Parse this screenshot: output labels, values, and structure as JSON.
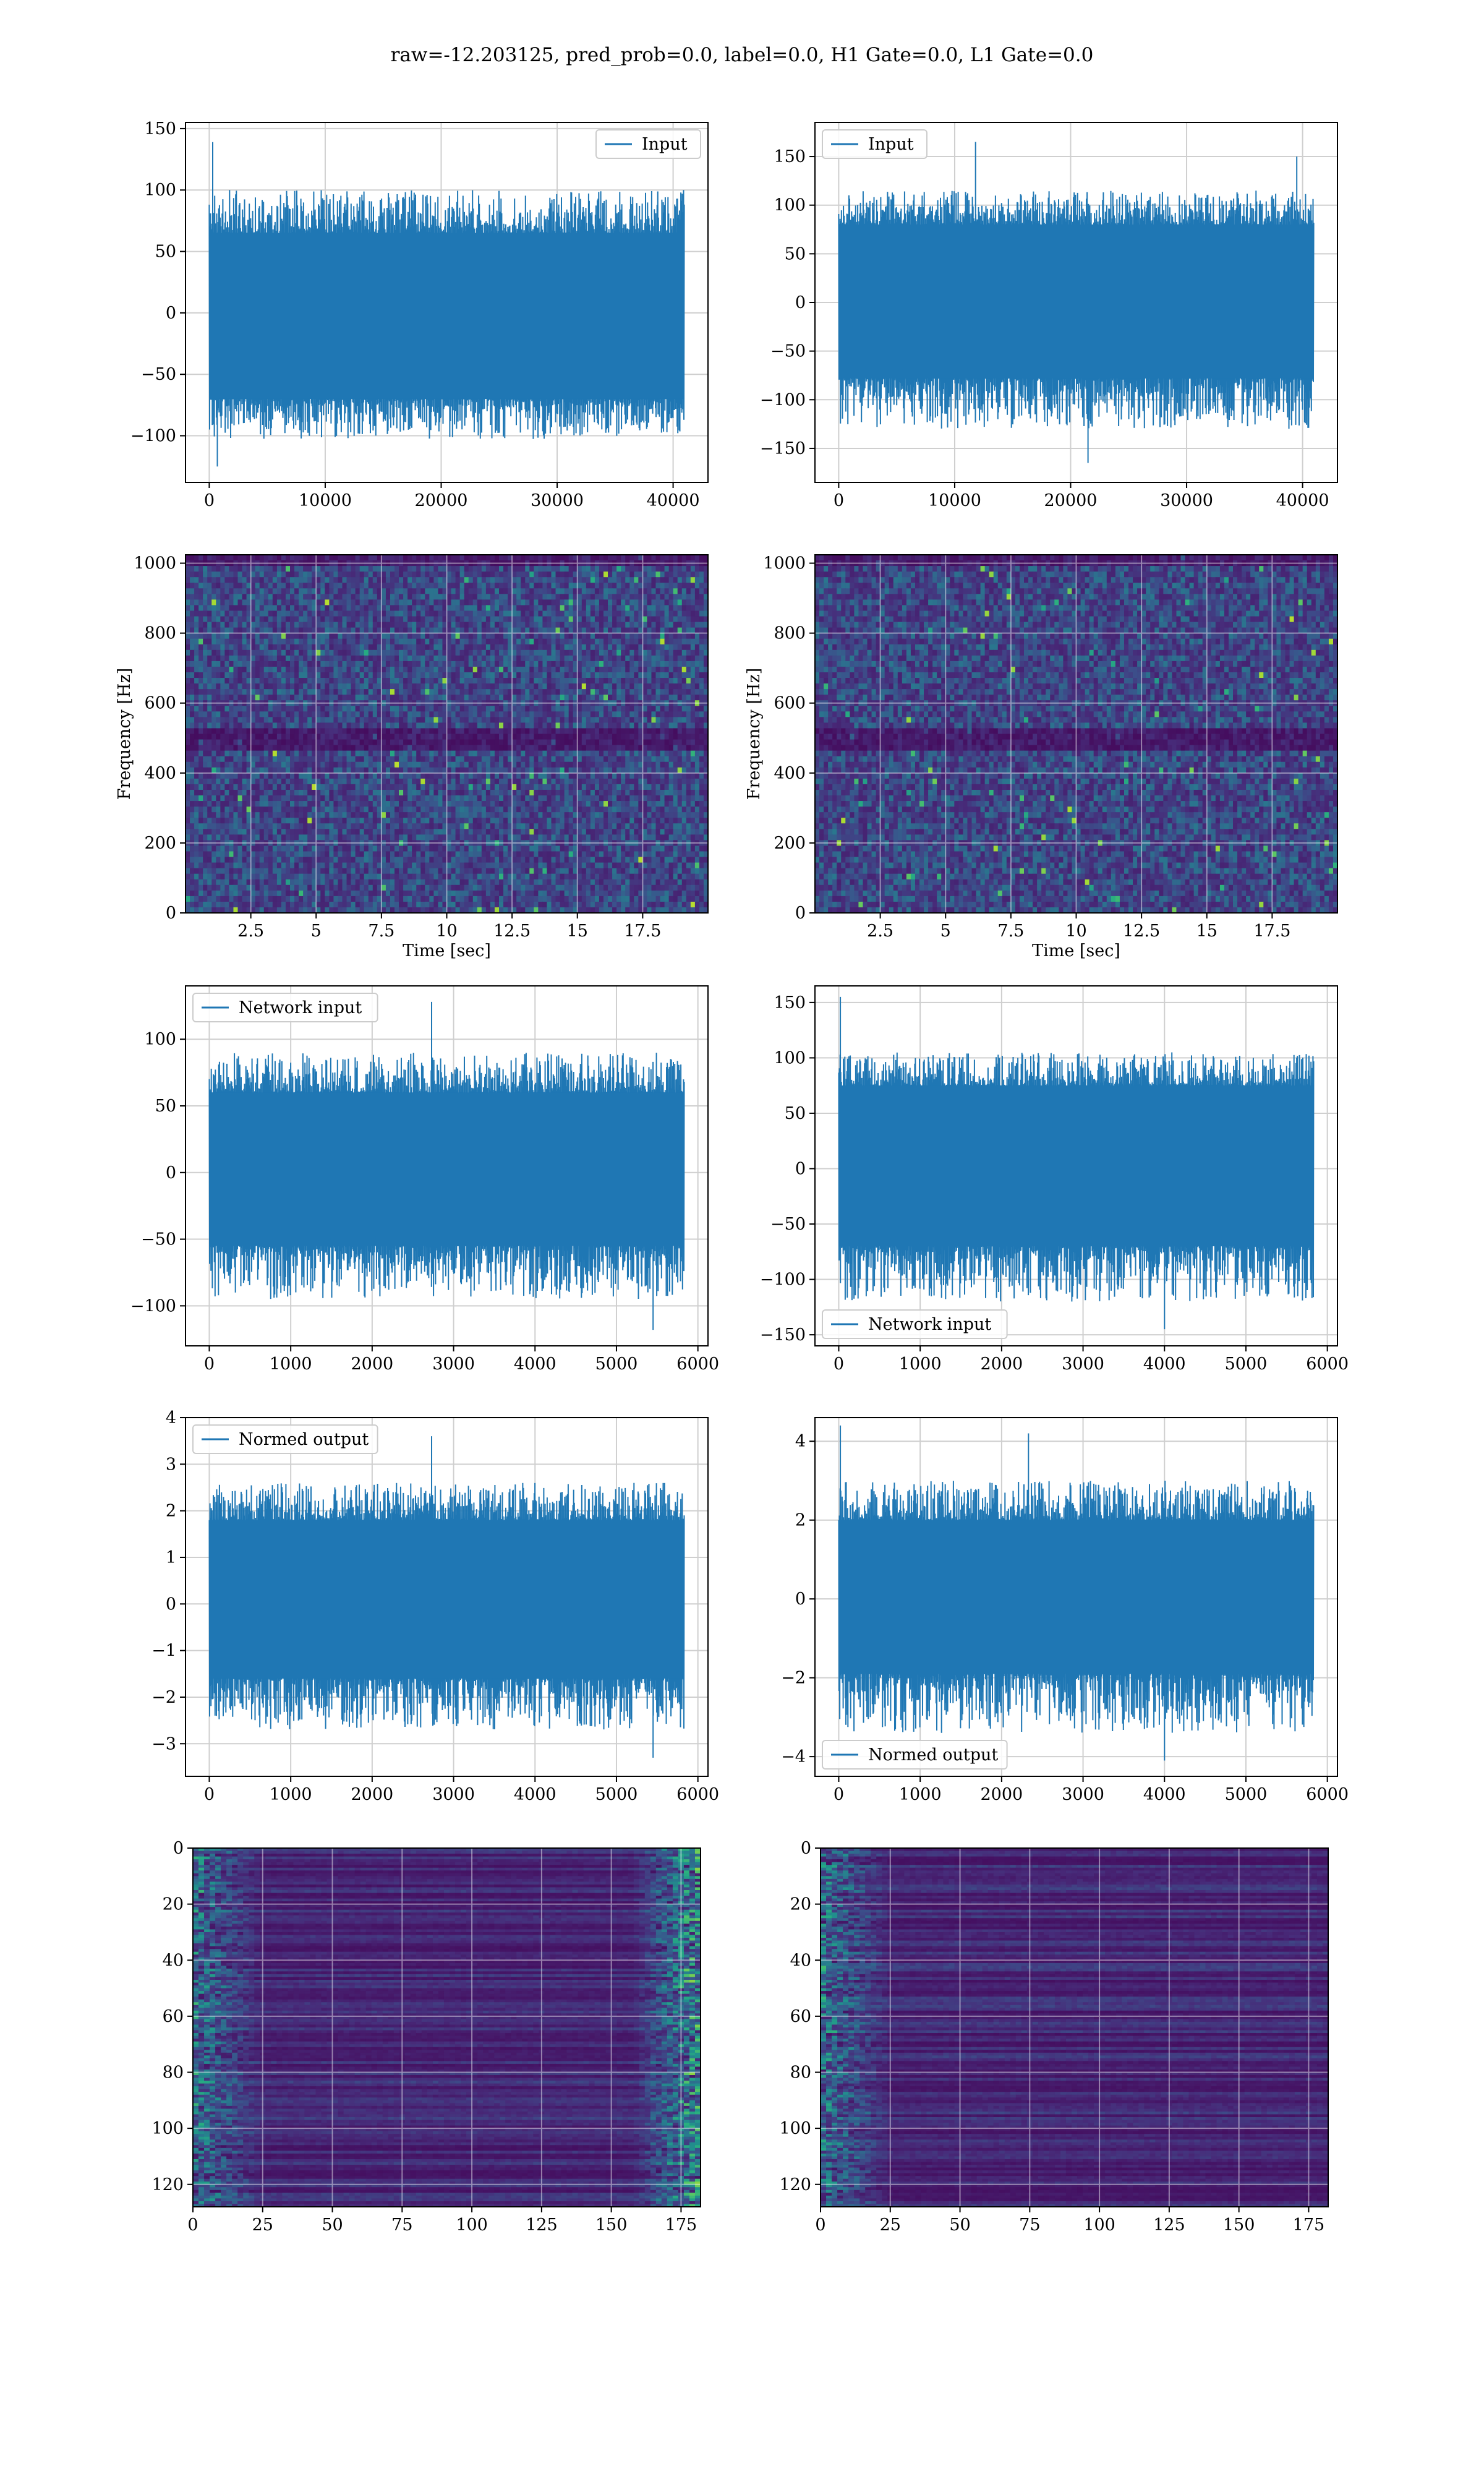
{
  "figure": {
    "suptitle": "raw=-12.203125, pred_prob=0.0, label=0.0, H1 Gate=0.0, L1 Gate=0.0",
    "colors": {
      "series": "#1f77b4",
      "grid": "#b0b0b0",
      "axes": "#000000"
    }
  },
  "chart_data": [
    {
      "id": "r1c1",
      "type": "line",
      "series": [
        {
          "name": "Input"
        }
      ],
      "legend": "top-right",
      "x_range": [
        0,
        40960
      ],
      "xlim": [
        -2048,
        43008
      ],
      "ylim": [
        -138,
        155
      ],
      "x_ticks": [
        0,
        10000,
        20000,
        30000,
        40000
      ],
      "y_ticks": [
        -100,
        -50,
        0,
        50,
        100,
        150
      ],
      "envelope_max": 100,
      "envelope_min": -103,
      "core": [
        -70,
        65
      ],
      "spikes": [
        [
          0.3,
          139
        ],
        [
          0.7,
          -125
        ],
        [
          40.9,
          100
        ]
      ],
      "grid": true
    },
    {
      "id": "r1c2",
      "type": "line",
      "series": [
        {
          "name": "Input"
        }
      ],
      "legend": "top-left",
      "x_range": [
        0,
        40960
      ],
      "xlim": [
        -2048,
        43008
      ],
      "ylim": [
        -185,
        185
      ],
      "x_ticks": [
        0,
        10000,
        20000,
        30000,
        40000
      ],
      "y_ticks": [
        -150,
        -100,
        -50,
        0,
        50,
        100,
        150
      ],
      "envelope_max": 115,
      "envelope_min": -130,
      "core": [
        -78,
        80
      ],
      "spikes": [
        [
          11.8,
          165
        ],
        [
          21.5,
          -165
        ],
        [
          39.5,
          150
        ]
      ],
      "grid": true
    },
    {
      "id": "r2c1",
      "type": "heatmap",
      "colormap": "viridis",
      "xlabel": "Time [sec]",
      "ylabel": "Frequency [Hz]",
      "xlim": [
        0,
        20
      ],
      "ylim": [
        0,
        1024
      ],
      "x_ticks": [
        2.5,
        5.0,
        7.5,
        10.0,
        12.5,
        15.0,
        17.5
      ],
      "y_ticks": [
        0,
        200,
        400,
        600,
        800,
        1000
      ],
      "dark_bands_hz": [
        [
          470,
          520
        ],
        [
          1000,
          1024
        ]
      ],
      "grid": true
    },
    {
      "id": "r2c2",
      "type": "heatmap",
      "colormap": "viridis",
      "xlabel": "Time [sec]",
      "ylabel": "Frequency [Hz]",
      "xlim": [
        0,
        20
      ],
      "ylim": [
        0,
        1024
      ],
      "x_ticks": [
        2.5,
        5.0,
        7.5,
        10.0,
        12.5,
        15.0,
        17.5
      ],
      "y_ticks": [
        0,
        200,
        400,
        600,
        800,
        1000
      ],
      "dark_bands_hz": [
        [
          470,
          520
        ],
        [
          1000,
          1024
        ]
      ],
      "grid": true
    },
    {
      "id": "r3c1",
      "type": "line",
      "series": [
        {
          "name": "Network input"
        }
      ],
      "legend": "top-left",
      "x_range": [
        0,
        5832
      ],
      "xlim": [
        -292,
        6124
      ],
      "ylim": [
        -130,
        140
      ],
      "x_ticks": [
        0,
        1000,
        2000,
        3000,
        4000,
        5000,
        6000
      ],
      "y_ticks": [
        -100,
        -50,
        0,
        50,
        100
      ],
      "envelope_max": 90,
      "envelope_min": -95,
      "core": [
        -55,
        60
      ],
      "spikes": [
        [
          2.73,
          128
        ],
        [
          5.45,
          -118
        ]
      ],
      "grid": true
    },
    {
      "id": "r3c2",
      "type": "line",
      "series": [
        {
          "name": "Network input"
        }
      ],
      "legend": "bottom-left",
      "x_range": [
        0,
        5832
      ],
      "xlim": [
        -292,
        6124
      ],
      "ylim": [
        -160,
        165
      ],
      "x_ticks": [
        0,
        1000,
        2000,
        3000,
        4000,
        5000,
        6000
      ],
      "y_ticks": [
        -150,
        -100,
        -50,
        0,
        50,
        100,
        150
      ],
      "envelope_max": 105,
      "envelope_min": -120,
      "core": [
        -70,
        75
      ],
      "spikes": [
        [
          0.02,
          155
        ],
        [
          4.0,
          -145
        ]
      ],
      "grid": true
    },
    {
      "id": "r4c1",
      "type": "line",
      "series": [
        {
          "name": "Normed output"
        }
      ],
      "legend": "top-left",
      "x_range": [
        0,
        5832
      ],
      "xlim": [
        -292,
        6124
      ],
      "ylim": [
        -3.7,
        4.0
      ],
      "x_ticks": [
        0,
        1000,
        2000,
        3000,
        4000,
        5000,
        6000
      ],
      "y_ticks": [
        -3,
        -2,
        -1,
        0,
        1,
        2,
        3,
        4
      ],
      "envelope_max": 2.6,
      "envelope_min": -2.7,
      "core": [
        -1.6,
        1.8
      ],
      "spikes": [
        [
          2.73,
          3.6
        ],
        [
          5.45,
          -3.3
        ]
      ],
      "grid": true
    },
    {
      "id": "r4c2",
      "type": "line",
      "series": [
        {
          "name": "Normed output"
        }
      ],
      "legend": "bottom-left",
      "x_range": [
        0,
        5832
      ],
      "xlim": [
        -292,
        6124
      ],
      "ylim": [
        -4.5,
        4.6
      ],
      "x_ticks": [
        0,
        1000,
        2000,
        3000,
        4000,
        5000,
        6000
      ],
      "y_ticks": [
        -4,
        -2,
        0,
        2,
        4
      ],
      "envelope_max": 3.0,
      "envelope_min": -3.4,
      "core": [
        -1.9,
        2.0
      ],
      "spikes": [
        [
          0.02,
          4.4
        ],
        [
          4.0,
          -4.1
        ],
        [
          2.33,
          4.2
        ]
      ],
      "grid": true
    },
    {
      "id": "r5c1",
      "type": "heatmap",
      "colormap": "viridis",
      "xlim": [
        0,
        182
      ],
      "ylim": [
        128,
        0
      ],
      "x_ticks": [
        0,
        25,
        50,
        75,
        100,
        125,
        150,
        175
      ],
      "y_ticks": [
        0,
        20,
        40,
        60,
        80,
        100,
        120
      ],
      "bright_regions": [
        "left edge (0-25)",
        "right edge (160-182)"
      ],
      "grid": true
    },
    {
      "id": "r5c2",
      "type": "heatmap",
      "colormap": "viridis",
      "xlim": [
        0,
        182
      ],
      "ylim": [
        128,
        0
      ],
      "x_ticks": [
        0,
        25,
        50,
        75,
        100,
        125,
        150,
        175
      ],
      "y_ticks": [
        0,
        20,
        40,
        60,
        80,
        100,
        120
      ],
      "bright_regions": [
        "left edge (0-25)"
      ],
      "grid": true
    }
  ]
}
